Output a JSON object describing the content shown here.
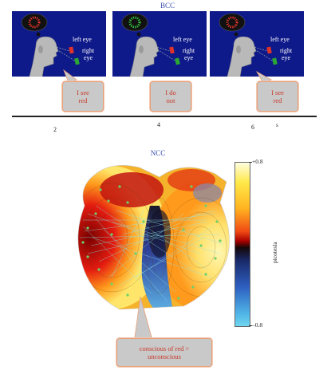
{
  "bcc": {
    "title": "BCC",
    "panels": [
      {
        "left_eye": "left eye",
        "right_eye_1": "right",
        "right_eye_2": "eye",
        "thought_color": "#e0342a",
        "callout": [
          "I see",
          "red"
        ]
      },
      {
        "left_eye": "left eye",
        "right_eye_1": "right",
        "right_eye_2": "eye",
        "thought_color": "#33c23a",
        "callout": [
          "I do",
          "not"
        ]
      },
      {
        "left_eye": "left eye",
        "right_eye_1": "right",
        "right_eye_2": "eye",
        "thought_color": "#e0342a",
        "callout": [
          "I see",
          "red"
        ]
      }
    ]
  },
  "timeline": {
    "ticks": [
      "2",
      "4",
      "6"
    ],
    "unit": "s"
  },
  "ncc": {
    "title": "NCC",
    "callout": [
      "conscious of red >",
      "unconscious"
    ],
    "colorbar": {
      "max_label": "+0.8",
      "min_label": "–0.8",
      "axis_label": "picotesla"
    }
  },
  "colors": {
    "panel_bg": "#0f1a8a",
    "title_blue": "#3a4fb0",
    "callout_text": "#c83a2a"
  }
}
